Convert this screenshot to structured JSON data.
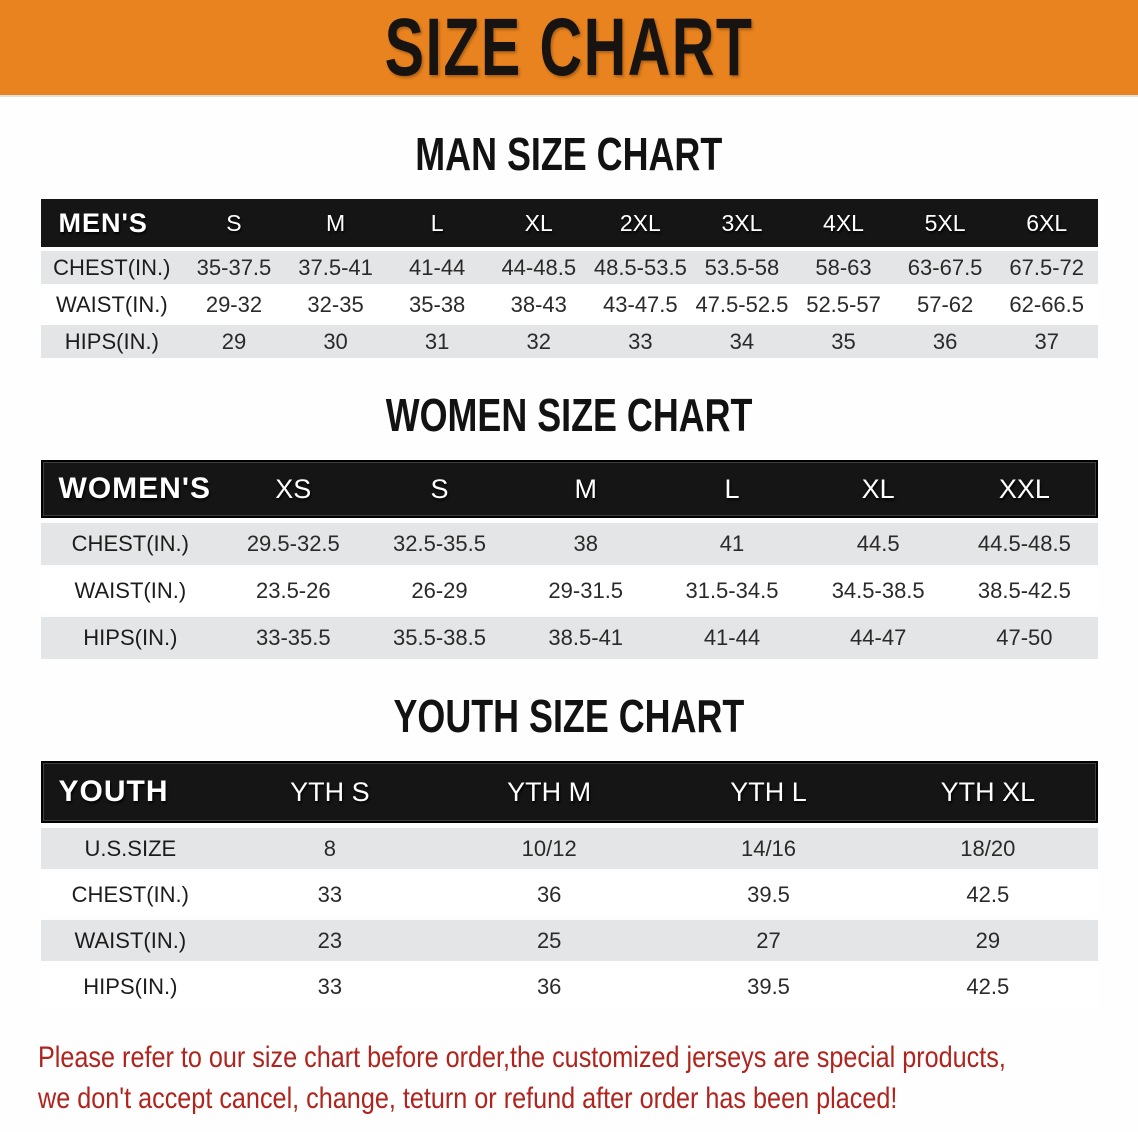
{
  "banner": {
    "title": "SIZE CHART",
    "bg_color": "#E8831F",
    "text_color": "#161310"
  },
  "sections": [
    {
      "title": "MAN SIZE CHART",
      "header_label": "MEN'S",
      "columns": [
        "S",
        "M",
        "L",
        "XL",
        "2XL",
        "3XL",
        "4XL",
        "5XL",
        "6XL"
      ],
      "rows": [
        {
          "label": "CHEST(IN.)",
          "values": [
            "35-37.5",
            "37.5-41",
            "41-44",
            "44-48.5",
            "48.5-53.5",
            "53.5-58",
            "58-63",
            "63-67.5",
            "67.5-72"
          ]
        },
        {
          "label": "WAIST(IN.)",
          "values": [
            "29-32",
            "32-35",
            "35-38",
            "38-43",
            "43-47.5",
            "47.5-52.5",
            "52.5-57",
            "57-62",
            "62-66.5"
          ]
        },
        {
          "label": "HIPS(IN.)",
          "values": [
            "29",
            "30",
            "31",
            "32",
            "33",
            "34",
            "35",
            "36",
            "37"
          ]
        }
      ]
    },
    {
      "title": "WOMEN SIZE CHART",
      "header_label": "WOMEN'S",
      "columns": [
        "XS",
        "S",
        "M",
        "L",
        "XL",
        "XXL"
      ],
      "rows": [
        {
          "label": "CHEST(IN.)",
          "values": [
            "29.5-32.5",
            "32.5-35.5",
            "38",
            "41",
            "44.5",
            "44.5-48.5"
          ]
        },
        {
          "label": "WAIST(IN.)",
          "values": [
            "23.5-26",
            "26-29",
            "29-31.5",
            "31.5-34.5",
            "34.5-38.5",
            "38.5-42.5"
          ]
        },
        {
          "label": "HIPS(IN.)",
          "values": [
            "33-35.5",
            "35.5-38.5",
            "38.5-41",
            "41-44",
            "44-47",
            "47-50"
          ]
        }
      ]
    },
    {
      "title": "YOUTH SIZE CHART",
      "header_label": "YOUTH",
      "columns": [
        "YTH S",
        "YTH M",
        "YTH L",
        "YTH XL"
      ],
      "rows": [
        {
          "label": "U.S.SIZE",
          "values": [
            "8",
            "10/12",
            "14/16",
            "18/20"
          ]
        },
        {
          "label": "CHEST(IN.)",
          "values": [
            "33",
            "36",
            "39.5",
            "42.5"
          ]
        },
        {
          "label": "WAIST(IN.)",
          "values": [
            "23",
            "25",
            "27",
            "29"
          ]
        },
        {
          "label": "HIPS(IN.)",
          "values": [
            "33",
            "36",
            "39.5",
            "42.5"
          ]
        }
      ]
    }
  ],
  "disclaimer": {
    "line1": "Please refer to our size chart before order,the customized jerseys are special products,",
    "line2": "we don't accept cancel, change, teturn or refund after order has been placed!",
    "color": "#B0241E"
  },
  "colors": {
    "banner_orange": "#E8831F",
    "header_bar_black": "#151515",
    "row_shade_gray": "#E4E5E6",
    "disclaimer_red": "#B0241E"
  }
}
